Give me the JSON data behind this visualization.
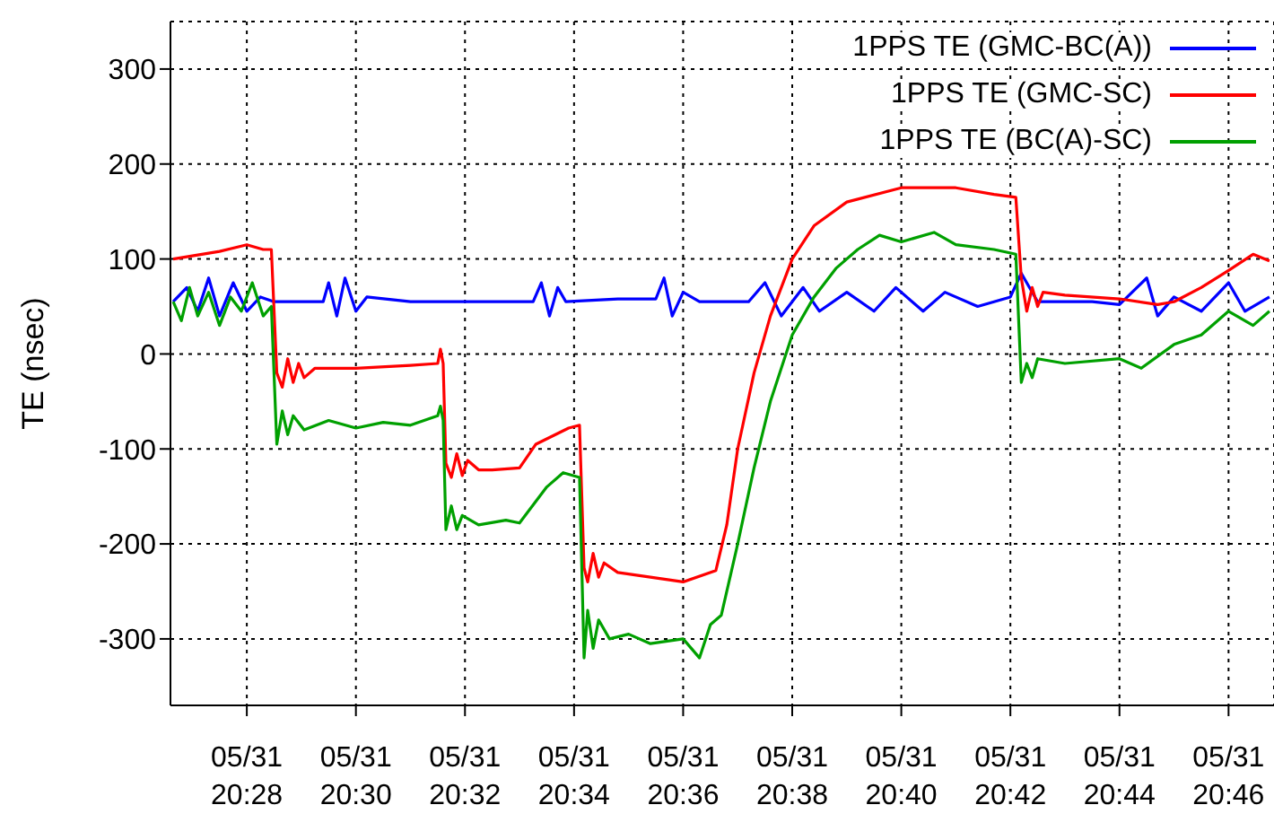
{
  "chart_data": {
    "type": "line",
    "ylabel": "TE (nsec)",
    "xlim": [
      "--05-31T20:26:36",
      "--05-31T20:46:50"
    ],
    "ylim": [
      -370,
      350
    ],
    "xticks": [
      {
        "value": "--05-31T20:28",
        "label": "05/31\n20:28"
      },
      {
        "value": "--05-31T20:30",
        "label": "05/31\n20:30"
      },
      {
        "value": "--05-31T20:32",
        "label": "05/31\n20:32"
      },
      {
        "value": "--05-31T20:34",
        "label": "05/31\n20:34"
      },
      {
        "value": "--05-31T20:36",
        "label": "05/31\n20:36"
      },
      {
        "value": "--05-31T20:38",
        "label": "05/31\n20:38"
      },
      {
        "value": "--05-31T20:40",
        "label": "05/31\n20:40"
      },
      {
        "value": "--05-31T20:42",
        "label": "05/31\n20:42"
      },
      {
        "value": "--05-31T20:44",
        "label": "05/31\n20:44"
      },
      {
        "value": "--05-31T20:46",
        "label": "05/31\n20:46"
      }
    ],
    "yticks": [
      -300,
      -200,
      -100,
      0,
      100,
      200,
      300
    ],
    "grid": true,
    "legend": "top right",
    "marker": "none",
    "line_style": "solid",
    "series": [
      {
        "name": "1PPS TE (GMC-BC(A))",
        "color": "#0000ff",
        "x": [
          "--05-31T20:26:39",
          "--05-31T20:26:54",
          "--05-31T20:27:06",
          "--05-31T20:27:18",
          "--05-31T20:27:30",
          "--05-31T20:27:45",
          "--05-31T20:28:00",
          "--05-31T20:28:15",
          "--05-31T20:28:30",
          "--05-31T20:29:24",
          "--05-31T20:29:30",
          "--05-31T20:29:39",
          "--05-31T20:29:48",
          "--05-31T20:30:00",
          "--05-31T20:30:12",
          "--05-31T20:31:00",
          "--05-31T20:32:00",
          "--05-31T20:33:15",
          "--05-31T20:33:24",
          "--05-31T20:33:33",
          "--05-31T20:33:42",
          "--05-31T20:33:51",
          "--05-31T20:34:48",
          "--05-31T20:35:30",
          "--05-31T20:35:39",
          "--05-31T20:35:48",
          "--05-31T20:36:00",
          "--05-31T20:36:18",
          "--05-31T20:37:12",
          "--05-31T20:37:30",
          "--05-31T20:37:48",
          "--05-31T20:38:12",
          "--05-31T20:38:30",
          "--05-31T20:39:00",
          "--05-31T20:39:30",
          "--05-31T20:39:54",
          "--05-31T20:40:24",
          "--05-31T20:40:48",
          "--05-31T20:41:24",
          "--05-31T20:42:00",
          "--05-31T20:42:12",
          "--05-31T20:42:30",
          "--05-31T20:43:00",
          "--05-31T20:43:30",
          "--05-31T20:44:00",
          "--05-31T20:44:30",
          "--05-31T20:44:42",
          "--05-31T20:45:00",
          "--05-31T20:45:30",
          "--05-31T20:46:00",
          "--05-31T20:46:18",
          "--05-31T20:46:45"
        ],
        "values": [
          55,
          70,
          45,
          80,
          40,
          75,
          45,
          60,
          55,
          55,
          75,
          40,
          80,
          45,
          60,
          55,
          55,
          55,
          75,
          40,
          70,
          55,
          58,
          58,
          80,
          40,
          65,
          55,
          55,
          75,
          40,
          70,
          45,
          65,
          45,
          70,
          45,
          65,
          50,
          60,
          85,
          55,
          55,
          55,
          52,
          80,
          40,
          60,
          45,
          75,
          45,
          60
        ]
      },
      {
        "name": "1PPS TE (GMC-SC)",
        "color": "#ff0000",
        "x": [
          "--05-31T20:26:39",
          "--05-31T20:27:30",
          "--05-31T20:28:00",
          "--05-31T20:28:18",
          "--05-31T20:28:27",
          "--05-31T20:28:33",
          "--05-31T20:28:39",
          "--05-31T20:28:45",
          "--05-31T20:28:51",
          "--05-31T20:28:57",
          "--05-31T20:29:03",
          "--05-31T20:29:15",
          "--05-31T20:30:00",
          "--05-31T20:31:00",
          "--05-31T20:31:30",
          "--05-31T20:31:33",
          "--05-31T20:31:36",
          "--05-31T20:31:39",
          "--05-31T20:31:45",
          "--05-31T20:31:51",
          "--05-31T20:31:57",
          "--05-31T20:32:03",
          "--05-31T20:32:15",
          "--05-31T20:32:30",
          "--05-31T20:33:00",
          "--05-31T20:33:18",
          "--05-31T20:33:54",
          "--05-31T20:34:06",
          "--05-31T20:34:11",
          "--05-31T20:34:15",
          "--05-31T20:34:21",
          "--05-31T20:34:27",
          "--05-31T20:34:33",
          "--05-31T20:34:48",
          "--05-31T20:35:24",
          "--05-31T20:36:00",
          "--05-31T20:36:36",
          "--05-31T20:36:48",
          "--05-31T20:37:00",
          "--05-31T20:37:18",
          "--05-31T20:37:36",
          "--05-31T20:38:00",
          "--05-31T20:38:24",
          "--05-31T20:39:00",
          "--05-31T20:40:00",
          "--05-31T20:41:00",
          "--05-31T20:41:42",
          "--05-31T20:42:06",
          "--05-31T20:42:12",
          "--05-31T20:42:18",
          "--05-31T20:42:24",
          "--05-31T20:42:30",
          "--05-31T20:42:36",
          "--05-31T20:43:00",
          "--05-31T20:44:00",
          "--05-31T20:44:42",
          "--05-31T20:45:00",
          "--05-31T20:45:30",
          "--05-31T20:46:00",
          "--05-31T20:46:27",
          "--05-31T20:46:45"
        ],
        "values": [
          100,
          108,
          115,
          110,
          110,
          -20,
          -35,
          -5,
          -30,
          -10,
          -25,
          -15,
          -15,
          -12,
          -10,
          5,
          -10,
          -115,
          -130,
          -105,
          -128,
          -112,
          -122,
          -122,
          -120,
          -95,
          -78,
          -75,
          -225,
          -240,
          -210,
          -235,
          -220,
          -230,
          -235,
          -240,
          -228,
          -180,
          -100,
          -20,
          40,
          100,
          135,
          160,
          175,
          175,
          168,
          165,
          80,
          45,
          70,
          50,
          65,
          62,
          58,
          52,
          55,
          70,
          88,
          105,
          98
        ]
      },
      {
        "name": "1PPS TE (BC(A)-SC)",
        "color": "#00a000",
        "x": [
          "--05-31T20:26:39",
          "--05-31T20:26:48",
          "--05-31T20:26:57",
          "--05-31T20:27:06",
          "--05-31T20:27:18",
          "--05-31T20:27:30",
          "--05-31T20:27:42",
          "--05-31T20:27:54",
          "--05-31T20:28:06",
          "--05-31T20:28:18",
          "--05-31T20:28:27",
          "--05-31T20:28:33",
          "--05-31T20:28:39",
          "--05-31T20:28:45",
          "--05-31T20:28:51",
          "--05-31T20:29:03",
          "--05-31T20:29:30",
          "--05-31T20:30:00",
          "--05-31T20:30:30",
          "--05-31T20:31:00",
          "--05-31T20:31:30",
          "--05-31T20:31:33",
          "--05-31T20:31:36",
          "--05-31T20:31:39",
          "--05-31T20:31:45",
          "--05-31T20:31:51",
          "--05-31T20:31:57",
          "--05-31T20:32:15",
          "--05-31T20:32:45",
          "--05-31T20:33:00",
          "--05-31T20:33:30",
          "--05-31T20:33:48",
          "--05-31T20:34:06",
          "--05-31T20:34:11",
          "--05-31T20:34:15",
          "--05-31T20:34:21",
          "--05-31T20:34:27",
          "--05-31T20:34:39",
          "--05-31T20:35:00",
          "--05-31T20:35:24",
          "--05-31T20:36:00",
          "--05-31T20:36:18",
          "--05-31T20:36:30",
          "--05-31T20:36:42",
          "--05-31T20:37:00",
          "--05-31T20:37:18",
          "--05-31T20:37:36",
          "--05-31T20:38:00",
          "--05-31T20:38:24",
          "--05-31T20:38:48",
          "--05-31T20:39:12",
          "--05-31T20:39:36",
          "--05-31T20:40:00",
          "--05-31T20:40:36",
          "--05-31T20:41:00",
          "--05-31T20:41:42",
          "--05-31T20:42:06",
          "--05-31T20:42:12",
          "--05-31T20:42:18",
          "--05-31T20:42:24",
          "--05-31T20:42:30",
          "--05-31T20:43:00",
          "--05-31T20:44:00",
          "--05-31T20:44:24",
          "--05-31T20:45:00",
          "--05-31T20:45:30",
          "--05-31T20:46:00",
          "--05-31T20:46:27",
          "--05-31T20:46:45"
        ],
        "values": [
          55,
          35,
          70,
          40,
          65,
          30,
          60,
          45,
          75,
          40,
          50,
          -95,
          -60,
          -85,
          -65,
          -80,
          -70,
          -78,
          -72,
          -75,
          -65,
          -55,
          -70,
          -185,
          -160,
          -185,
          -170,
          -180,
          -175,
          -178,
          -140,
          -125,
          -130,
          -320,
          -270,
          -310,
          -280,
          -300,
          -295,
          -305,
          -300,
          -320,
          -285,
          -275,
          -200,
          -120,
          -50,
          20,
          60,
          90,
          110,
          125,
          118,
          128,
          115,
          110,
          105,
          -30,
          -10,
          -25,
          -5,
          -10,
          -5,
          -15,
          10,
          20,
          45,
          30,
          45
        ]
      }
    ]
  }
}
